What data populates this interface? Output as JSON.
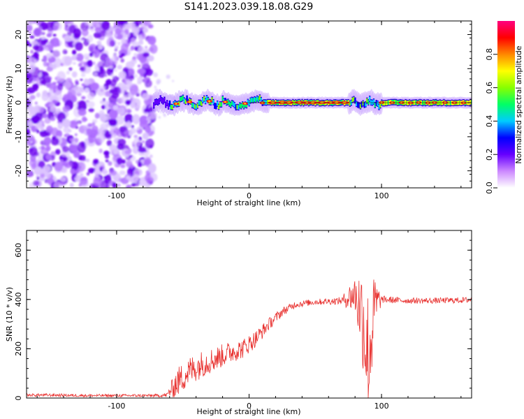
{
  "title": "S141.2023.039.18.08.G29",
  "chart_data": [
    {
      "type": "heatmap",
      "xlabel": "Height of straight line (km)",
      "ylabel": "Frequency (Hz)",
      "xlim": [
        -168,
        168
      ],
      "ylim": [
        -25,
        24
      ],
      "xticks": [
        -100,
        0,
        100
      ],
      "yticks": [
        -20,
        -10,
        0,
        10,
        20
      ],
      "colorbar": {
        "label": "Normalized spectral amplitude",
        "range": [
          0,
          1
        ],
        "ticks": [
          0.0,
          0.2,
          0.4,
          0.6,
          0.8
        ],
        "colors": [
          "#ffffff",
          "#cc88ff",
          "#6600ff",
          "#0000ff",
          "#00ccff",
          "#00ff66",
          "#88ff00",
          "#ffff00",
          "#ff8800",
          "#ff0000",
          "#ff0080"
        ]
      },
      "noise_region_x": [
        -168,
        -72
      ],
      "signal_region_x": [
        -72,
        168
      ],
      "signal_center_frequency": 0
    },
    {
      "type": "line",
      "xlabel": "Height of straight line (km)",
      "ylabel": "SNR (10 * v/v)",
      "xlim": [
        -168,
        168
      ],
      "ylim": [
        0,
        680
      ],
      "xticks": [
        -100,
        0,
        100
      ],
      "yticks": [
        0,
        200,
        400,
        600
      ],
      "line_color": "#e8312f",
      "x": [
        -168,
        -150,
        -120,
        -90,
        -70,
        -62,
        -55,
        -45,
        -35,
        -25,
        -15,
        -5,
        5,
        15,
        25,
        35,
        50,
        70,
        80,
        86,
        90,
        95,
        100,
        120,
        140,
        168
      ],
      "y": [
        12,
        12,
        10,
        10,
        10,
        12,
        60,
        110,
        140,
        160,
        185,
        200,
        240,
        300,
        350,
        380,
        390,
        395,
        420,
        330,
        150,
        380,
        400,
        395,
        395,
        398
      ],
      "noise_amplitude": [
        6,
        6,
        6,
        6,
        6,
        10,
        60,
        60,
        55,
        50,
        45,
        40,
        35,
        25,
        18,
        14,
        12,
        15,
        80,
        220,
        300,
        120,
        15,
        12,
        12,
        12
      ]
    }
  ]
}
